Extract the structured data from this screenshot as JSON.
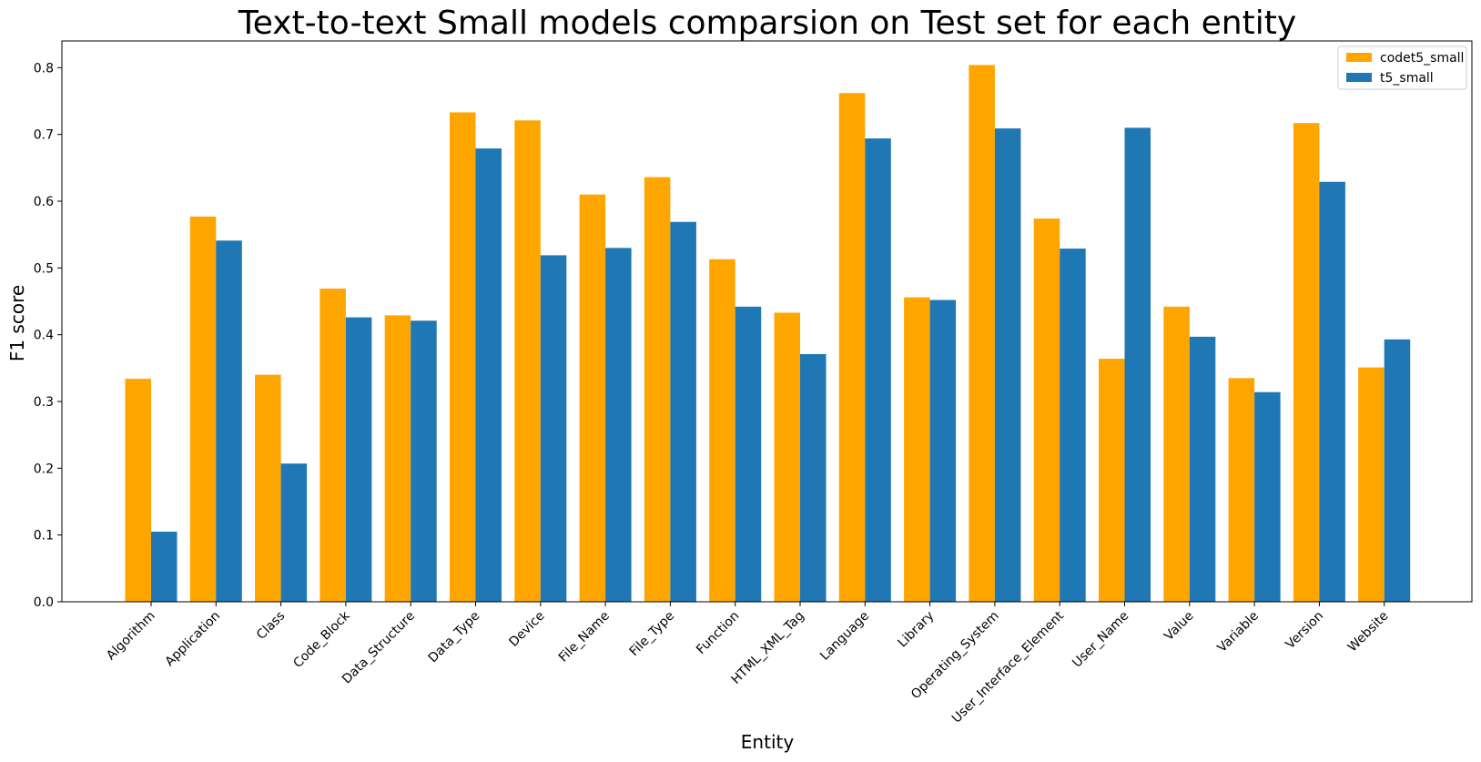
{
  "chart_data": {
    "type": "bar",
    "title": "Text-to-text Small models comparsion on Test set for each entity",
    "xlabel": "Entity",
    "ylabel": "F1 score",
    "ylim": [
      0,
      0.84
    ],
    "yticks": [
      "0.0",
      "0.1",
      "0.2",
      "0.3",
      "0.4",
      "0.5",
      "0.6",
      "0.7",
      "0.8"
    ],
    "grid": false,
    "legend_position": "top-right",
    "categories": [
      "Algorithm",
      "Application",
      "Class",
      "Code_Block",
      "Data_Structure",
      "Data_Type",
      "Device",
      "File_Name",
      "File_Type",
      "Function",
      "HTML_XML_Tag",
      "Language",
      "Library",
      "Operating_System",
      "User_Interface_Element",
      "User_Name",
      "Value",
      "Variable",
      "Version",
      "Website"
    ],
    "series": [
      {
        "name": "codet5_small",
        "color": "#FFA500",
        "values": [
          0.334,
          0.577,
          0.34,
          0.469,
          0.429,
          0.733,
          0.721,
          0.61,
          0.636,
          0.513,
          0.433,
          0.762,
          0.456,
          0.804,
          0.574,
          0.364,
          0.442,
          0.335,
          0.717,
          0.351
        ]
      },
      {
        "name": "t5_small",
        "color": "#1F77B4",
        "values": [
          0.105,
          0.541,
          0.207,
          0.426,
          0.421,
          0.679,
          0.519,
          0.53,
          0.569,
          0.442,
          0.371,
          0.694,
          0.452,
          0.709,
          0.529,
          0.71,
          0.397,
          0.314,
          0.629,
          0.393
        ]
      }
    ]
  }
}
